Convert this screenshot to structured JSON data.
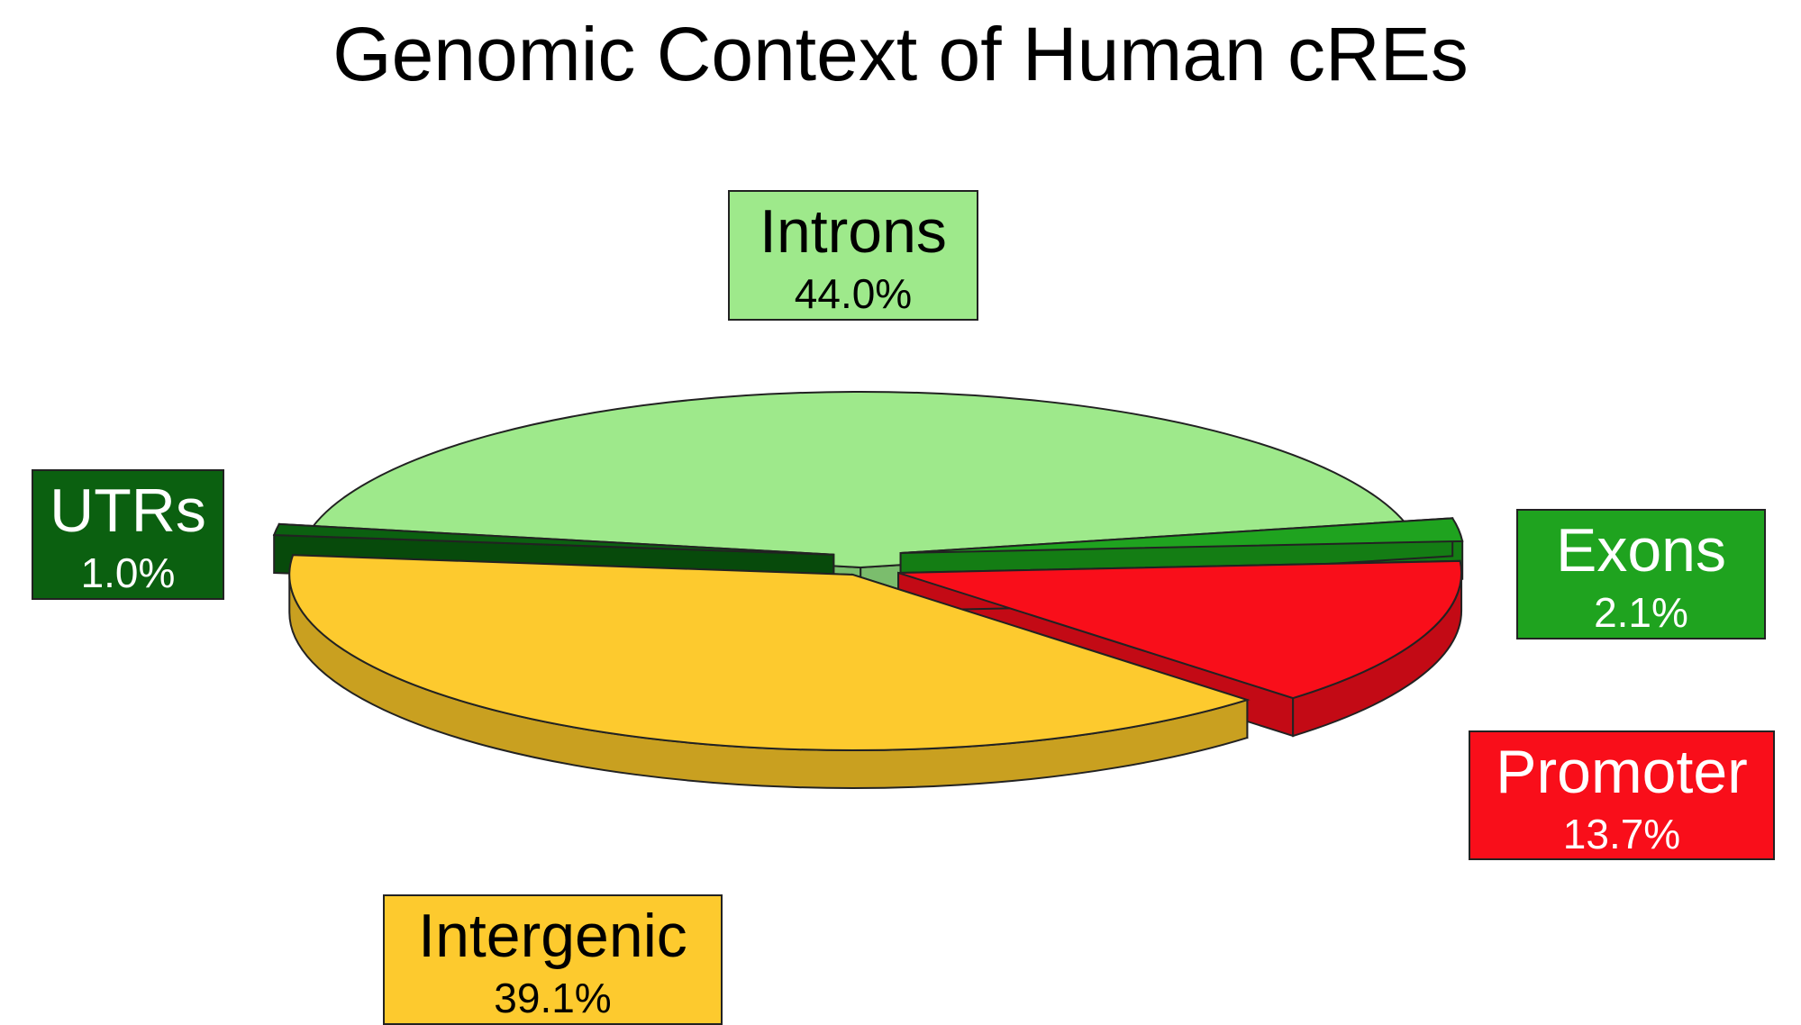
{
  "chart_data": {
    "type": "pie",
    "title": "Genomic Context of Human cREs",
    "slices": [
      {
        "label": "Introns",
        "value": 44.0,
        "value_label": "44.0%",
        "color": "#9ee98b",
        "side_color": "#7bbd6d",
        "text_color": "#000000"
      },
      {
        "label": "Exons",
        "value": 2.1,
        "value_label": "2.1%",
        "color": "#1fa31f",
        "side_color": "#147d14",
        "text_color": "#ffffff"
      },
      {
        "label": "Promoter",
        "value": 13.7,
        "value_label": "13.7%",
        "color": "#f90e1a",
        "side_color": "#c30a15",
        "text_color": "#ffffff"
      },
      {
        "label": "Intergenic",
        "value": 39.1,
        "value_label": "39.1%",
        "color": "#fdca2e",
        "side_color": "#c9a020",
        "text_color": "#000000"
      },
      {
        "label": "UTRs",
        "value": 1.0,
        "value_label": "1.0%",
        "color": "#0b6010",
        "side_color": "#074a0b",
        "text_color": "#ffffff"
      }
    ],
    "style": "3d-exploded"
  }
}
